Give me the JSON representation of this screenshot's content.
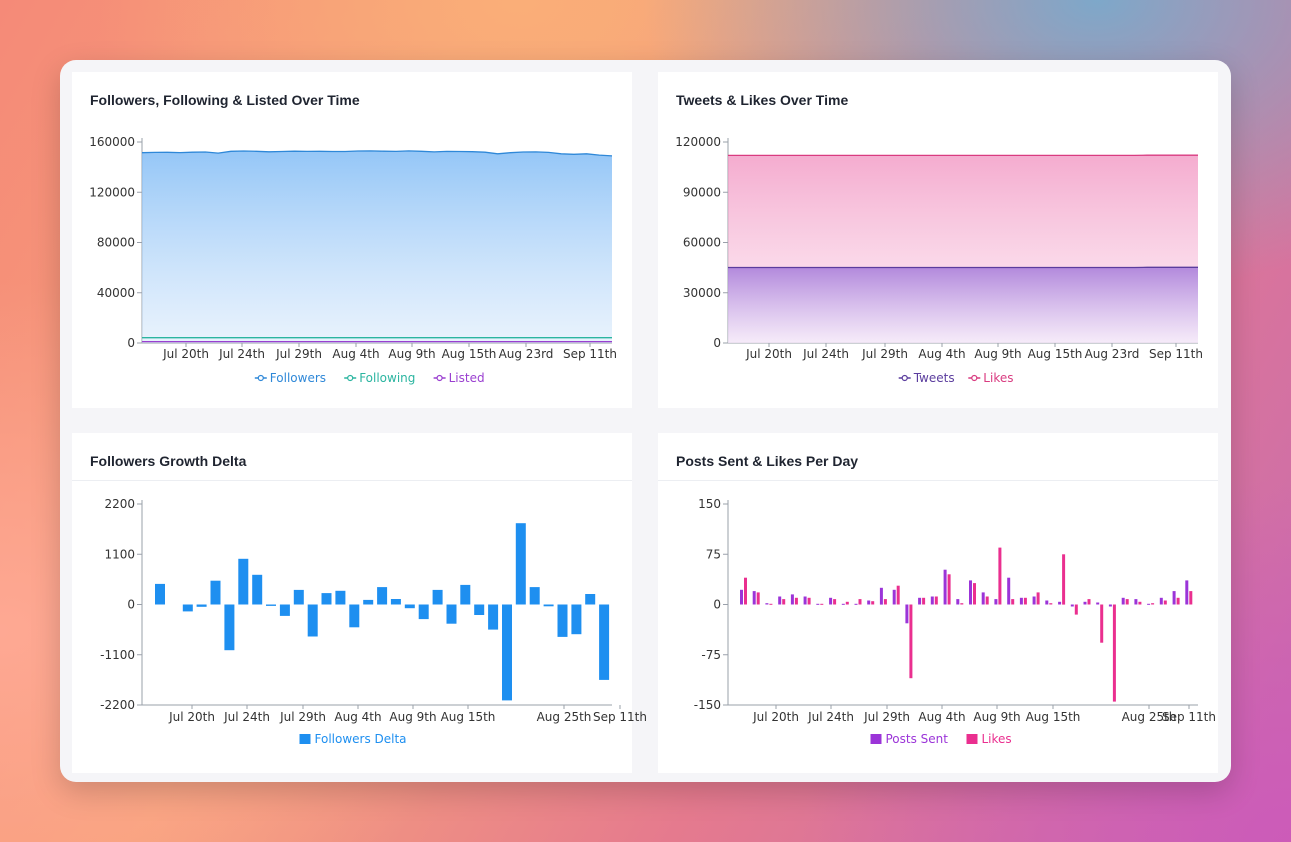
{
  "colors": {
    "followers": "#2f88d8",
    "following": "#2bb5a0",
    "listed": "#9a3fd0",
    "tweets": "#5b3d9e",
    "likes": "#d93b80",
    "delta_bar": "#1e8ff0",
    "posts_bar": "#9b34d8",
    "likes_bar": "#ea2f8f",
    "axis": "#9aa0aa",
    "tick_text": "#333333"
  },
  "charts": [
    {
      "id": "followers",
      "title": "Followers, Following & Listed Over Time",
      "chart_data": {
        "type": "area",
        "title": "Followers, Following & Listed Over Time",
        "x_ticks": [
          "Jul 20th",
          "Jul 24th",
          "Jul 29th",
          "Aug 4th",
          "Aug 9th",
          "Aug 15th",
          "Aug 23rd",
          "Sep 11th"
        ],
        "y_ticks": [
          "160000",
          "120000",
          "80000",
          "40000",
          "0"
        ],
        "ylim": [
          0,
          160000
        ],
        "grid": false,
        "legend_position": "bottom",
        "series": [
          {
            "name": "Followers",
            "icon": "line-circle-icon",
            "values": [
              151500,
              151700,
              151800,
              151600,
              151900,
              152000,
              151200,
              152600,
              152800,
              152600,
              152200,
              152400,
              152700,
              152500,
              152600,
              152400,
              152400,
              152800,
              152900,
              152700,
              152500,
              152900,
              152600,
              152100,
              152500,
              152400,
              152300,
              151900,
              150600,
              151500,
              152000,
              152100,
              151700,
              150600,
              150200,
              150600,
              149600,
              148900
            ]
          },
          {
            "name": "Following",
            "icon": "line-circle-icon",
            "values": [
              4200,
              4200,
              4200,
              4200,
              4200,
              4200,
              4200,
              4200,
              4200,
              4200,
              4200,
              4200,
              4200,
              4200,
              4200,
              4200,
              4200,
              4200,
              4200,
              4200,
              4200,
              4200,
              4200,
              4200,
              4200,
              4200,
              4200,
              4200,
              4200,
              4200,
              4200,
              4200,
              4200,
              4200,
              4200,
              4200,
              4200,
              4200
            ]
          },
          {
            "name": "Listed",
            "icon": "line-circle-icon",
            "values": [
              1100,
              1100,
              1100,
              1100,
              1100,
              1100,
              1100,
              1100,
              1100,
              1100,
              1100,
              1100,
              1100,
              1100,
              1100,
              1100,
              1100,
              1100,
              1100,
              1100,
              1100,
              1100,
              1100,
              1100,
              1100,
              1100,
              1100,
              1100,
              1100,
              1100,
              1100,
              1100,
              1100,
              1100,
              1100,
              1100,
              1100,
              1100
            ]
          }
        ]
      }
    },
    {
      "id": "tweets",
      "title": "Tweets & Likes Over Time",
      "chart_data": {
        "type": "area",
        "title": "Tweets & Likes Over Time",
        "x_ticks": [
          "Jul 20th",
          "Jul 24th",
          "Jul 29th",
          "Aug 4th",
          "Aug 9th",
          "Aug 15th",
          "Aug 23rd",
          "Sep 11th"
        ],
        "y_ticks": [
          "120000",
          "90000",
          "60000",
          "30000",
          "0"
        ],
        "ylim": [
          0,
          120000
        ],
        "grid": false,
        "legend_position": "bottom",
        "series": [
          {
            "name": "Tweets",
            "icon": "line-circle-icon",
            "values": [
              45100,
              45100,
              45100,
              45100,
              45100,
              45100,
              45100,
              45100,
              45100,
              45100,
              45100,
              45100,
              45100,
              45100,
              45100,
              45100,
              45100,
              45100,
              45100,
              45100,
              45100,
              45100,
              45100,
              45100,
              45100,
              45100,
              45100,
              45100,
              45100,
              45100,
              45100,
              45100,
              45100,
              45200,
              45200,
              45200,
              45200,
              45200
            ]
          },
          {
            "name": "Likes",
            "icon": "line-circle-icon",
            "values": [
              112000,
              112000,
              112000,
              112000,
              112000,
              112000,
              112000,
              112000,
              112000,
              112000,
              112000,
              112000,
              112000,
              112000,
              112000,
              112000,
              112000,
              112000,
              112000,
              112000,
              112000,
              112000,
              112000,
              112000,
              112000,
              112000,
              112000,
              112000,
              112000,
              112000,
              112000,
              112000,
              112000,
              112100,
              112100,
              112100,
              112100,
              112100
            ]
          }
        ]
      }
    },
    {
      "id": "delta",
      "title": "Followers Growth Delta",
      "chart_data": {
        "type": "bar",
        "title": "Followers Growth Delta",
        "x_ticks": [
          "Jul 20th",
          "Jul 24th",
          "Jul 29th",
          "Aug 4th",
          "Aug 9th",
          "Aug 15th",
          "Aug 25th",
          "Sep 11th"
        ],
        "y_ticks": [
          "2200",
          "1100",
          "0",
          "-1100",
          "-2200"
        ],
        "ylim": [
          -2200,
          2200
        ],
        "grid": false,
        "legend_position": "bottom",
        "series": [
          {
            "name": "Followers Delta",
            "icon": "square-icon",
            "values": [
              450,
              0,
              -150,
              -50,
              520,
              -1000,
              1000,
              650,
              -30,
              -250,
              320,
              -700,
              250,
              300,
              -500,
              100,
              380,
              120,
              -80,
              -320,
              320,
              -420,
              430,
              -230,
              -550,
              -2100,
              1780,
              380,
              -40,
              -710,
              -650,
              230,
              -1650
            ]
          }
        ]
      }
    },
    {
      "id": "posts",
      "title": "Posts Sent & Likes Per Day",
      "chart_data": {
        "type": "bar",
        "title": "Posts Sent & Likes Per Day",
        "x_ticks": [
          "Jul 20th",
          "Jul 24th",
          "Jul 29th",
          "Aug 4th",
          "Aug 9th",
          "Aug 15th",
          "Aug 25th",
          "Sep 11th"
        ],
        "y_ticks": [
          "150",
          "75",
          "0",
          "-75",
          "-150"
        ],
        "ylim": [
          -150,
          150
        ],
        "grid": false,
        "legend_position": "bottom",
        "categories_count": 36,
        "series": [
          {
            "name": "Posts Sent",
            "icon": "square-icon",
            "values": [
              22,
              20,
              2,
              12,
              15,
              12,
              1,
              10,
              1,
              1,
              6,
              25,
              22,
              -28,
              10,
              12,
              52,
              8,
              36,
              18,
              8,
              40,
              10,
              12,
              6,
              4,
              -3,
              4,
              3,
              -3,
              10,
              8,
              1,
              10,
              20,
              36
            ]
          },
          {
            "name": "Likes",
            "icon": "square-icon",
            "values": [
              40,
              18,
              1,
              8,
              10,
              10,
              1,
              8,
              4,
              8,
              5,
              8,
              28,
              -110,
              10,
              12,
              45,
              2,
              32,
              12,
              85,
              8,
              10,
              18,
              2,
              75,
              -15,
              8,
              -57,
              -145,
              8,
              4,
              2,
              6,
              10,
              20
            ]
          }
        ]
      }
    }
  ]
}
